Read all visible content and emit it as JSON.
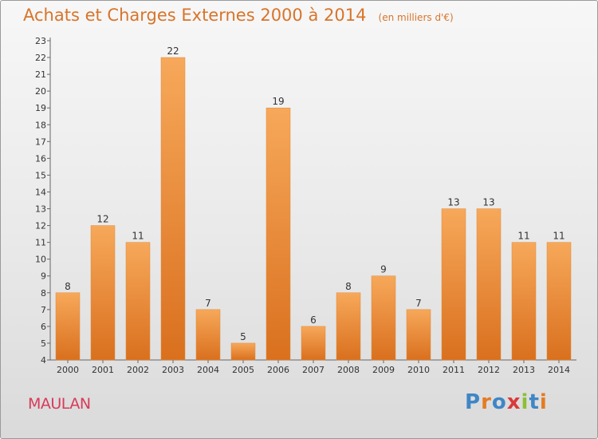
{
  "page": {
    "title": "Achats et Charges Externes 2000 à 2014",
    "unit": "(en milliers d'€)",
    "commune": "MAULAN",
    "logo": "Proxiti"
  },
  "colors": {
    "title": "#d8742a",
    "commune": "#d83a5a",
    "bar_top": "#f7a85a",
    "bar_bottom": "#d9701e",
    "logo": [
      "#3f86c6",
      "#e57b22",
      "#3f86c6",
      "#d93a3a",
      "#8cbf35",
      "#3f86c6",
      "#e57b22"
    ]
  },
  "chart_data": {
    "type": "bar",
    "title": "Achats et Charges Externes 2000 à 2014",
    "subtitle": "(en milliers d'€)",
    "xlabel": "",
    "ylabel": "",
    "categories": [
      "2000",
      "2001",
      "2002",
      "2003",
      "2004",
      "2005",
      "2006",
      "2007",
      "2008",
      "2009",
      "2010",
      "2011",
      "2012",
      "2013",
      "2014"
    ],
    "values": [
      8,
      12,
      11,
      22,
      7,
      5,
      19,
      6,
      8,
      9,
      7,
      13,
      13,
      11,
      11
    ],
    "ylim": [
      4,
      23
    ],
    "yticks": [
      4,
      5,
      6,
      7,
      8,
      9,
      10,
      11,
      12,
      13,
      14,
      15,
      16,
      17,
      18,
      19,
      20,
      21,
      22,
      23
    ],
    "data_labels": true,
    "grid": false,
    "legend": "none"
  }
}
